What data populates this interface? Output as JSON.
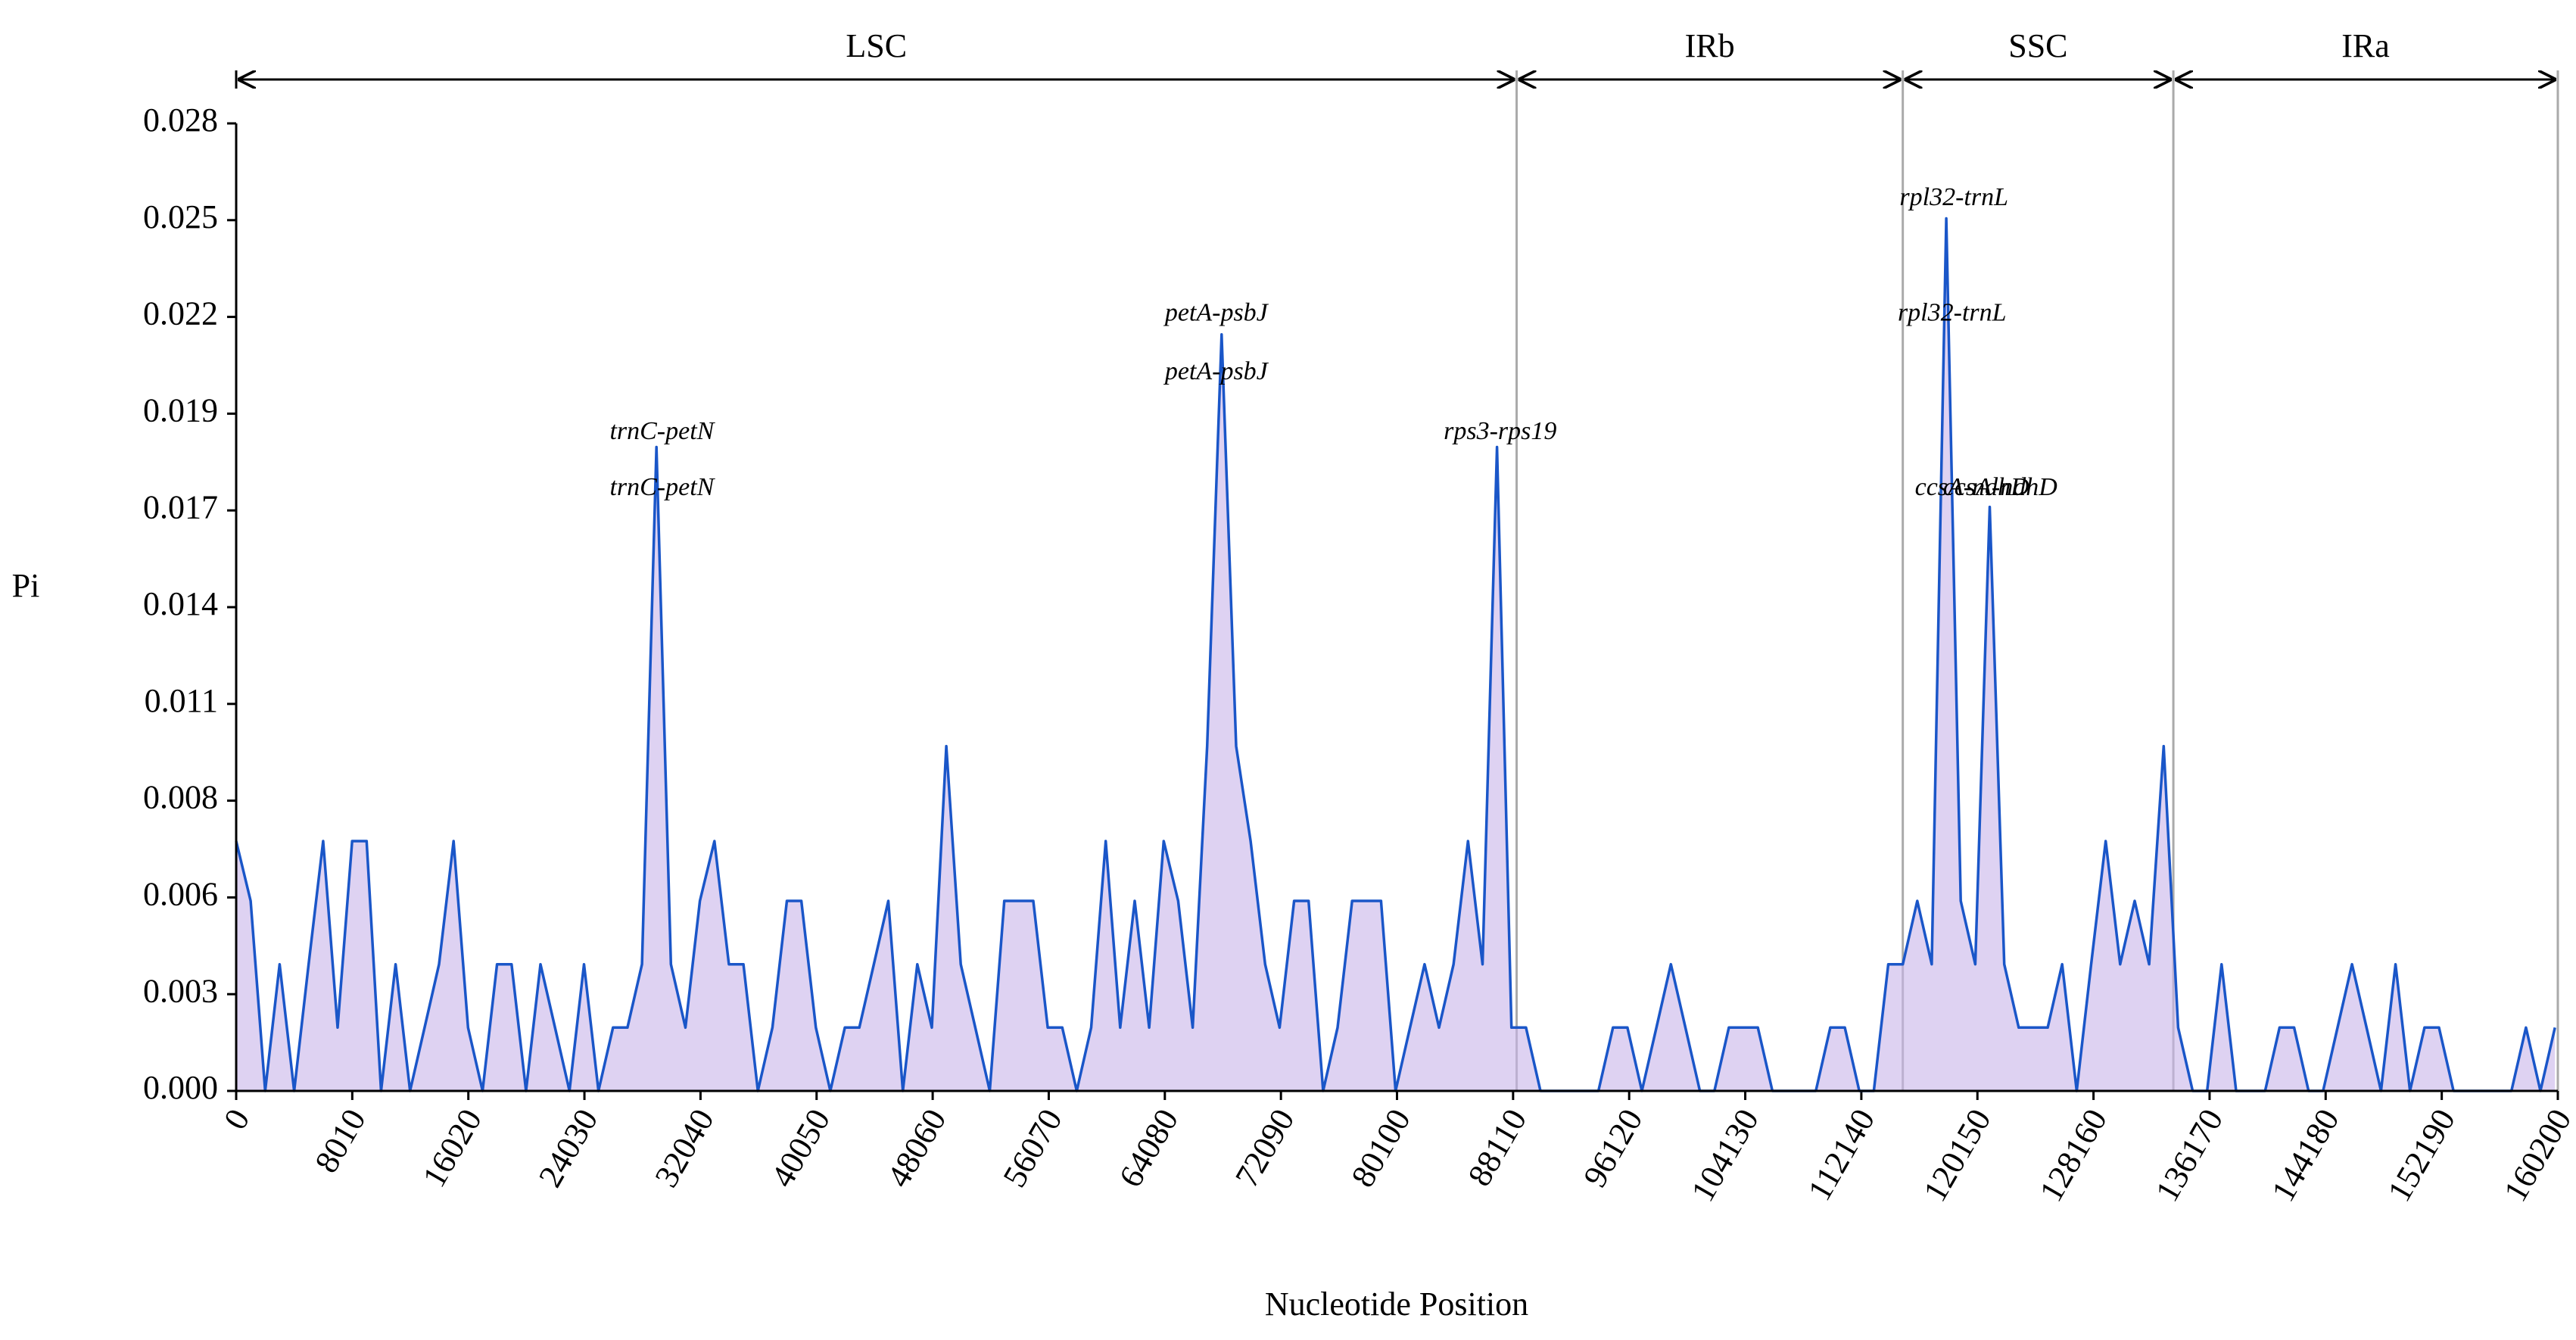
{
  "chart_data": {
    "type": "line",
    "x_label": "Nucleotide Position",
    "y_label": "Pi",
    "xlim": [
      0,
      160200
    ],
    "xticks": [
      0,
      8010,
      16020,
      24030,
      32040,
      40050,
      48060,
      56070,
      64080,
      72090,
      80100,
      88110,
      96120,
      104130,
      112140,
      120150,
      128160,
      136170,
      144180,
      152190,
      160200
    ],
    "ylim": [
      0,
      0.0275
    ],
    "yticks": [
      {
        "value": 0,
        "label": "0.000"
      },
      {
        "value": 0.00275,
        "label": "0.003"
      },
      {
        "value": 0.0055,
        "label": "0.006"
      },
      {
        "value": 0.00825,
        "label": "0.008"
      },
      {
        "value": 0.011,
        "label": "0.011"
      },
      {
        "value": 0.01375,
        "label": "0.014"
      },
      {
        "value": 0.0165,
        "label": "0.017"
      },
      {
        "value": 0.01925,
        "label": "0.019"
      },
      {
        "value": 0.022,
        "label": "0.022"
      },
      {
        "value": 0.02475,
        "label": "0.025"
      },
      {
        "value": 0.0275,
        "label": "0.028"
      }
    ],
    "regions": [
      {
        "name": "LSC",
        "start": 0,
        "end": 88355
      },
      {
        "name": "IRb",
        "start": 88355,
        "end": 115000
      },
      {
        "name": "SSC",
        "start": 115000,
        "end": 133670
      },
      {
        "name": "IRa",
        "start": 133670,
        "end": 160200
      }
    ],
    "annotations": [
      {
        "text": "trnC-petN",
        "x": 29376,
        "y": 0.0187
      },
      {
        "text": "trnC-petN",
        "x": 29376,
        "y": 0.0171
      },
      {
        "text": "petA-psbJ",
        "x": 67632,
        "y": 0.02206
      },
      {
        "text": "petA-psbJ",
        "x": 67632,
        "y": 0.0204
      },
      {
        "text": "rps3-rps19",
        "x": 87218,
        "y": 0.0187
      },
      {
        "text": "rpl32-trnL",
        "x": 118528,
        "y": 0.02534
      },
      {
        "text": "rpl32-trnL",
        "x": 118400,
        "y": 0.02206
      },
      {
        "text": "ccsA-ndhD",
        "x": 119780,
        "y": 0.0171
      },
      {
        "text": "ccsA-ndhD",
        "x": 121716,
        "y": 0.0171
      }
    ],
    "color": "#1a56c8",
    "fill": "#c8b4ea",
    "x": [
      0,
      1000,
      2000,
      3000,
      4000,
      5000,
      6000,
      7000,
      8000,
      9000,
      10000,
      11000,
      12000,
      13000,
      14000,
      15000,
      16000,
      17000,
      18000,
      19000,
      20000,
      21000,
      22000,
      23000,
      24000,
      25000,
      26000,
      27000,
      28000,
      29000,
      30000,
      31000,
      32000,
      33000,
      34000,
      35000,
      36000,
      37000,
      38000,
      39000,
      40000,
      41000,
      42000,
      43000,
      44000,
      45000,
      46000,
      47000,
      48000,
      49000,
      50000,
      51000,
      52000,
      53000,
      54000,
      55000,
      56000,
      57000,
      58000,
      59000,
      60000,
      61000,
      62000,
      63000,
      64000,
      65000,
      66000,
      67000,
      68000,
      69000,
      70000,
      71000,
      72000,
      73000,
      74000,
      75000,
      76000,
      77000,
      78000,
      79000,
      80000,
      81000,
      82000,
      83000,
      84000,
      85000,
      86000,
      87000,
      88000,
      89000,
      90000,
      91000,
      92000,
      93000,
      94000,
      95000,
      96000,
      97000,
      98000,
      99000,
      100000,
      101000,
      102000,
      103000,
      104000,
      105000,
      106000,
      107000,
      108000,
      109000,
      110000,
      111000,
      112000,
      113000,
      114000,
      115000,
      116000,
      117000,
      118000,
      119000,
      120000,
      121000,
      122000,
      123000,
      124000,
      125000,
      126000,
      127000,
      128000,
      129000,
      130000,
      131000,
      132000,
      133000,
      134000,
      135000,
      136000,
      137000,
      138000,
      139000,
      140000,
      141000,
      142000,
      143000,
      144000,
      145000,
      146000,
      147000,
      148000,
      149000,
      150000,
      151000,
      152000,
      153000,
      154000,
      155000,
      156000,
      157000,
      158000,
      159000,
      160000
    ],
    "values": [
      0.0071,
      0.0054,
      0,
      0.0036,
      0,
      0.0036,
      0.0071,
      0.0018,
      0.0071,
      0.0071,
      0,
      0.0036,
      0,
      0.0018,
      0.0036,
      0.0071,
      0.0018,
      0,
      0.0036,
      0.0036,
      0,
      0.0036,
      0.0018,
      0,
      0.0036,
      0,
      0.0018,
      0.0018,
      0.0036,
      0.0183,
      0.0036,
      0.0018,
      0.0054,
      0.0071,
      0.0036,
      0.0036,
      0,
      0.0018,
      0.0054,
      0.0054,
      0.0018,
      0,
      0.0018,
      0.0018,
      0.0036,
      0.0054,
      0,
      0.0036,
      0.0018,
      0.0098,
      0.0036,
      0.0018,
      0,
      0.0054,
      0.0054,
      0.0054,
      0.0018,
      0.0018,
      0,
      0.0018,
      0.0071,
      0.0018,
      0.0054,
      0.0018,
      0.0071,
      0.0054,
      0.0018,
      0.0098,
      0.0215,
      0.0098,
      0.0071,
      0.0036,
      0.0018,
      0.0054,
      0.0054,
      0,
      0.0018,
      0.0054,
      0.0054,
      0.0054,
      0,
      0.0018,
      0.0036,
      0.0018,
      0.0036,
      0.0071,
      0.0036,
      0.0183,
      0.0018,
      0.0018,
      0,
      0,
      0,
      0,
      0,
      0.0018,
      0.0018,
      0,
      0.0018,
      0.0036,
      0.0018,
      0,
      0,
      0.0018,
      0.0018,
      0.0018,
      0,
      0,
      0,
      0,
      0.0018,
      0.0018,
      0,
      0,
      0.0036,
      0.0036,
      0.0054,
      0.0036,
      0.0248,
      0.0054,
      0.0036,
      0.0166,
      0.0036,
      0.0018,
      0.0018,
      0.0018,
      0.0036,
      0,
      0.0036,
      0.0071,
      0.0036,
      0.0054,
      0.0036,
      0.0098,
      0.0018,
      0,
      0,
      0.0036,
      0,
      0,
      0,
      0.0018,
      0.0018,
      0,
      0,
      0.0018,
      0.0036,
      0.0018,
      0,
      0.0036,
      0,
      0.0018,
      0.0018,
      0,
      0,
      0,
      0,
      0,
      0.0018,
      0,
      0.0018
    ]
  }
}
